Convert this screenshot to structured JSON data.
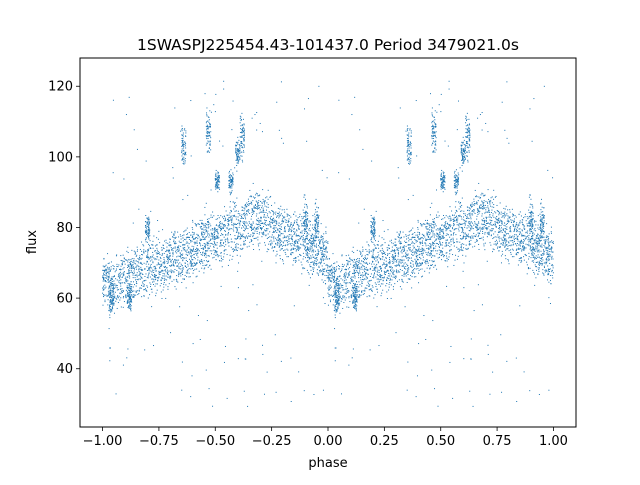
{
  "chart_data": {
    "type": "scatter",
    "title": "1SWASPJ225454.43-101437.0 Period 3479021.0s",
    "xlabel": "phase",
    "ylabel": "flux",
    "xlim": [
      -1.1,
      1.1
    ],
    "ylim": [
      23.5,
      128.0
    ],
    "xticks": [
      -1.0,
      -0.75,
      -0.5,
      -0.25,
      0.0,
      0.25,
      0.5,
      0.75,
      1.0
    ],
    "xtick_labels": [
      "−1.00",
      "−0.75",
      "−0.50",
      "−0.25",
      "0.00",
      "0.25",
      "0.50",
      "0.75",
      "1.00"
    ],
    "yticks": [
      40,
      60,
      80,
      100,
      120
    ],
    "ytick_labels": [
      "40",
      "60",
      "80",
      "100",
      "120"
    ],
    "grid": false,
    "legend": "none",
    "marker_color": "#1f77b4",
    "description_series": {
      "x_range": [
        -1.0,
        1.0
      ],
      "curve_points": [
        [
          0.0,
          65
        ],
        [
          0.05,
          64
        ],
        [
          0.1,
          66
        ],
        [
          0.15,
          68
        ],
        [
          0.2,
          69
        ],
        [
          0.25,
          70
        ],
        [
          0.3,
          71
        ],
        [
          0.35,
          72
        ],
        [
          0.4,
          74
        ],
        [
          0.45,
          76
        ],
        [
          0.5,
          77
        ],
        [
          0.55,
          79
        ],
        [
          0.6,
          80
        ],
        [
          0.65,
          82
        ],
        [
          0.7,
          83
        ],
        [
          0.75,
          80
        ],
        [
          0.8,
          79
        ],
        [
          0.85,
          78
        ],
        [
          0.9,
          76
        ],
        [
          0.95,
          74
        ],
        [
          1.0,
          72
        ]
      ],
      "clusters": [
        {
          "x": 0.62,
          "y": 106,
          "spread": 3
        },
        {
          "x": 0.47,
          "y": 107,
          "spread": 3
        },
        {
          "x": 0.36,
          "y": 103,
          "spread": 3
        },
        {
          "x": 0.51,
          "y": 93,
          "spread": 1.5
        },
        {
          "x": 0.57,
          "y": 93,
          "spread": 1.5
        },
        {
          "x": 0.6,
          "y": 101,
          "spread": 2
        },
        {
          "x": 0.95,
          "y": 82,
          "spread": 3
        },
        {
          "x": 0.9,
          "y": 82,
          "spread": 3
        },
        {
          "x": 0.04,
          "y": 60,
          "spread": 2
        },
        {
          "x": 0.12,
          "y": 60,
          "spread": 2
        },
        {
          "x": 0.2,
          "y": 80,
          "spread": 2
        }
      ]
    }
  }
}
